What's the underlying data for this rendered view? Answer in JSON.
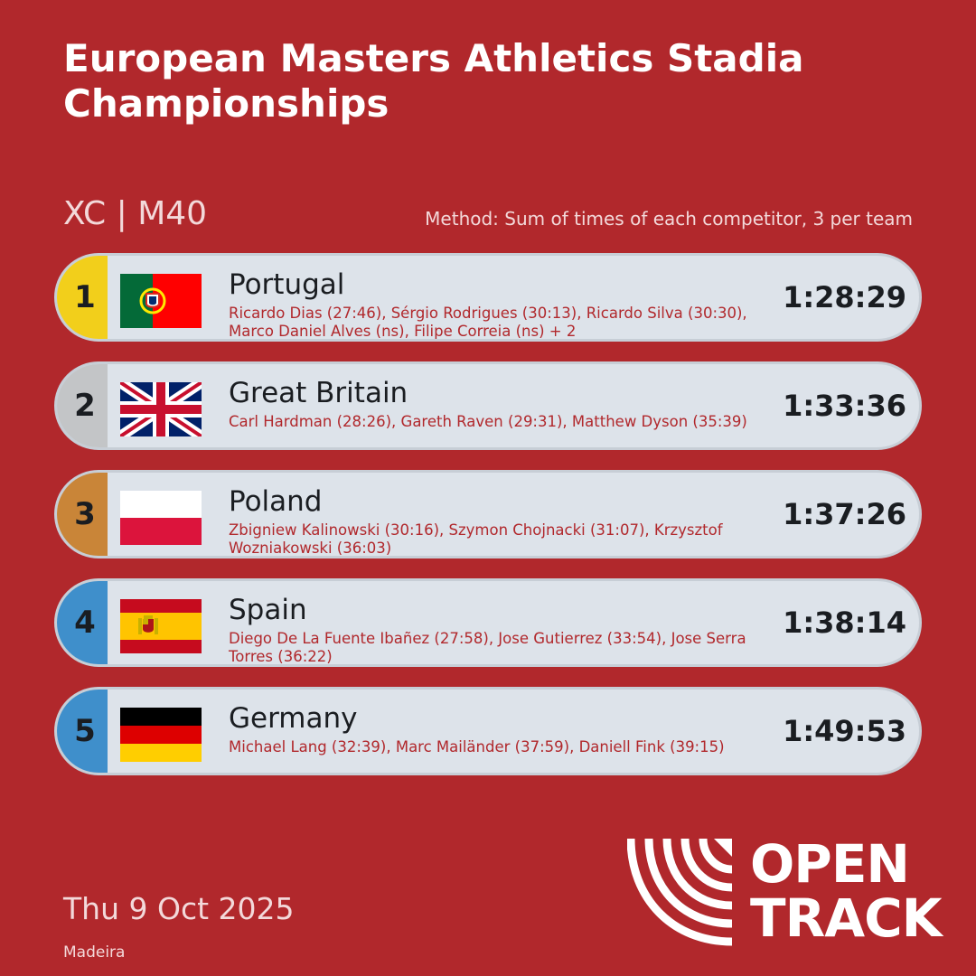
{
  "header": {
    "title": "European Masters Athletics Stadia Championships",
    "category": "XC | M40",
    "method": "Method: Sum of times of each competitor, 3 per team"
  },
  "colors": {
    "background": "#b1282c",
    "gold": "#f2cf1b",
    "silver": "#c3c5c7",
    "bronze": "#c98538",
    "blue": "#3f8fcb"
  },
  "teams": [
    {
      "rank": "1",
      "country": "Portugal",
      "members": "Ricardo Dias (27:46), Sérgio Rodrigues (30:13), Ricardo Silva (30:30), Marco Daniel Alves (ns), Filipe Correia (ns) + 2",
      "total": "1:28:29",
      "flag": "portugal-flag",
      "rank_color": "#f2cf1b"
    },
    {
      "rank": "2",
      "country": "Great Britain",
      "members": "Carl Hardman (28:26), Gareth Raven (29:31), Matthew Dyson (35:39)",
      "total": "1:33:36",
      "flag": "great-britain-flag",
      "rank_color": "#c3c5c7"
    },
    {
      "rank": "3",
      "country": "Poland",
      "members": "Zbigniew Kalinowski (30:16), Szymon Chojnacki (31:07), Krzysztof Wozniakowski (36:03)",
      "total": "1:37:26",
      "flag": "poland-flag",
      "rank_color": "#c98538"
    },
    {
      "rank": "4",
      "country": "Spain",
      "members": "Diego De La Fuente Ibañez (27:58), Jose Gutierrez (33:54), Jose Serra Torres (36:22)",
      "total": "1:38:14",
      "flag": "spain-flag",
      "rank_color": "#3f8fcb"
    },
    {
      "rank": "5",
      "country": "Germany",
      "members": "Michael Lang (32:39), Marc Mailänder (37:59), Daniell Fink (39:15)",
      "total": "1:49:53",
      "flag": "germany-flag",
      "rank_color": "#3f8fcb"
    }
  ],
  "footer": {
    "date": "Thu 9 Oct 2025",
    "venue": "Madeira",
    "logo_line1": "OPEN",
    "logo_line2": "TRACK",
    "logo_icon": "opentrack-logo-icon"
  }
}
